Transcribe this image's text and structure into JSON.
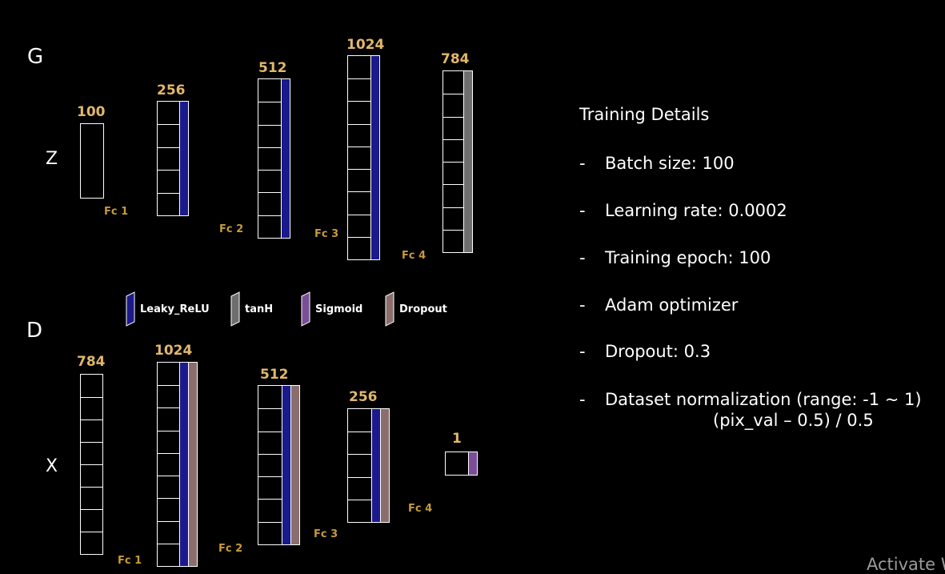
{
  "colors": {
    "background": "#000000",
    "leaky_relu": "#1a1a8c",
    "tanh": "#6e6e6e",
    "sigmoid": "#7a4e96",
    "dropout": "#8a6e6e",
    "size_label": "#e2b76c",
    "fc_label": "#c79a3c"
  },
  "generator": {
    "title": "G",
    "input_label": "Z",
    "layers": [
      {
        "size": "100",
        "fc": "Fc 1",
        "activations": []
      },
      {
        "size": "256",
        "fc": "Fc 2",
        "activations": [
          "leaky_relu"
        ]
      },
      {
        "size": "512",
        "fc": "Fc 3",
        "activations": [
          "leaky_relu"
        ]
      },
      {
        "size": "1024",
        "fc": "Fc 4",
        "activations": [
          "leaky_relu"
        ]
      },
      {
        "size": "784",
        "fc": "",
        "activations": [
          "tanh"
        ]
      }
    ]
  },
  "discriminator": {
    "title": "D",
    "input_label": "X",
    "layers": [
      {
        "size": "784",
        "fc": "Fc 1",
        "activations": []
      },
      {
        "size": "1024",
        "fc": "Fc 2",
        "activations": [
          "leaky_relu",
          "dropout"
        ]
      },
      {
        "size": "512",
        "fc": "Fc 3",
        "activations": [
          "leaky_relu",
          "dropout"
        ]
      },
      {
        "size": "256",
        "fc": "Fc 4",
        "activations": [
          "leaky_relu",
          "dropout"
        ]
      },
      {
        "size": "1",
        "fc": "",
        "activations": [
          "sigmoid"
        ]
      }
    ]
  },
  "legend": [
    {
      "key": "leaky_relu",
      "label": "Leaky_ReLU"
    },
    {
      "key": "tanh",
      "label": "tanH"
    },
    {
      "key": "sigmoid",
      "label": "Sigmoid"
    },
    {
      "key": "dropout",
      "label": "Dropout"
    }
  ],
  "training_details": {
    "title": "Training Details",
    "items": [
      {
        "dash": "-",
        "text": "Batch size: 100"
      },
      {
        "dash": "-",
        "text": "Learning rate: 0.0002"
      },
      {
        "dash": "-",
        "text": "Training epoch: 100"
      },
      {
        "dash": "-",
        "text": "Adam optimizer"
      },
      {
        "dash": "-",
        "text": "Dropout: 0.3"
      },
      {
        "dash": "-",
        "text": "Dataset normalization (range: -1 ~ 1)",
        "subtext": "(pix_val – 0.5) / 0.5"
      }
    ]
  },
  "watermark": "Activate W"
}
